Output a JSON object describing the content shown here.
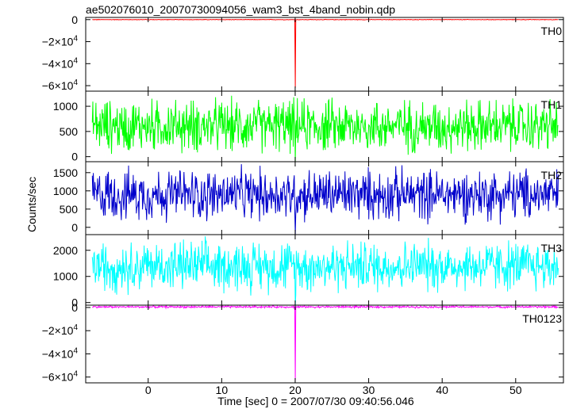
{
  "chart_data": {
    "type": "line",
    "title": "ae502076010_20070730094056_wam3_bst_4band_nobin.qdp",
    "xlabel": "Time [sec] 0 = 2007/07/30 09:40:56.046",
    "ylabel": "Counts/sec",
    "xlim": [
      -8.5,
      56.5
    ],
    "xticks": [
      0,
      10,
      20,
      30,
      40,
      50
    ],
    "xtick_labels": [
      "0",
      "10",
      "20",
      "30",
      "40",
      "50"
    ],
    "grid": false,
    "event_time": 20,
    "panels": [
      {
        "name": "TH0",
        "color": "#ff0000",
        "ylim": [
          -65000,
          2000
        ],
        "yticks": [
          0,
          -20000,
          -40000,
          -60000
        ],
        "ytick_labels": [
          {
            "m": "0",
            "e": ""
          },
          {
            "m": "−2×10",
            "e": "4"
          },
          {
            "m": "−4×10",
            "e": "4"
          },
          {
            "m": "−6×10",
            "e": "4"
          }
        ],
        "baseline": 0,
        "noise_range": [
          -300,
          300
        ],
        "event_min": -62000
      },
      {
        "name": "TH1",
        "color": "#00ff00",
        "ylim": [
          -100,
          1300
        ],
        "yticks": [
          0,
          500,
          1000
        ],
        "ytick_labels": [
          {
            "m": "0",
            "e": ""
          },
          {
            "m": "500",
            "e": ""
          },
          {
            "m": "1000",
            "e": ""
          }
        ],
        "baseline": 450,
        "noise_range": [
          20,
          1200
        ],
        "event_min": -100
      },
      {
        "name": "TH2",
        "color": "#0000cc",
        "ylim": [
          -200,
          1800
        ],
        "yticks": [
          0,
          500,
          1000,
          1500
        ],
        "ytick_labels": [
          {
            "m": "0",
            "e": ""
          },
          {
            "m": "500",
            "e": ""
          },
          {
            "m": "1000",
            "e": ""
          },
          {
            "m": "1500",
            "e": ""
          }
        ],
        "baseline": 700,
        "noise_range": [
          100,
          1700
        ],
        "event_min": -200
      },
      {
        "name": "TH3",
        "color": "#00ffff",
        "ylim": [
          -100,
          2600
        ],
        "yticks": [
          0,
          1000,
          2000
        ],
        "ytick_labels": [
          {
            "m": "0",
            "e": ""
          },
          {
            "m": "1000",
            "e": ""
          },
          {
            "m": "2000",
            "e": ""
          }
        ],
        "baseline": 1300,
        "noise_range": [
          300,
          2500
        ],
        "event_min": -100
      },
      {
        "name": "TH0123",
        "color": "#ff00ff",
        "ylim": [
          -65000,
          2000
        ],
        "yticks": [
          0,
          -20000,
          -40000,
          -60000
        ],
        "ytick_labels": [
          {
            "m": "0",
            "e": ""
          },
          {
            "m": "−2×10",
            "e": "4"
          },
          {
            "m": "−4×10",
            "e": "4"
          },
          {
            "m": "−6×10",
            "e": "4"
          }
        ],
        "baseline": 0,
        "noise_range": [
          -500,
          1500
        ],
        "event_min": -63000
      }
    ]
  }
}
